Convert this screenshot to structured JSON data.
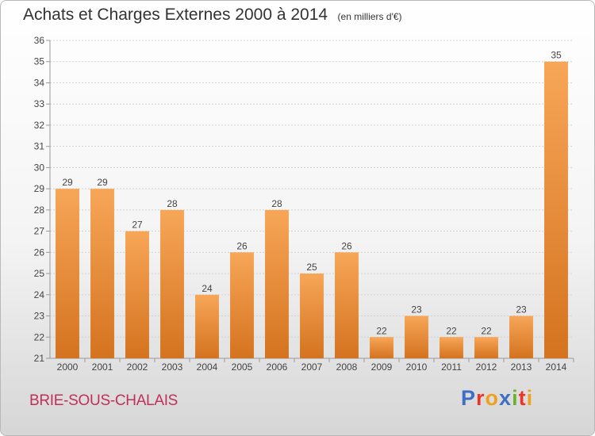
{
  "header": {
    "title": "Achats et Charges Externes 2000 à 2014",
    "unit": "(en milliers d'€)"
  },
  "footer": {
    "commune": "BRIE-SOUS-CHALAIS",
    "brand": "Proxiti"
  },
  "colors": {
    "bar_light": "#f7a658",
    "bar_dark": "#d4731f",
    "commune_text": "#c0305a",
    "brand_letters": [
      "#3d6fc4",
      "#e8362a",
      "#f0a020",
      "#3d6fc4",
      "#6ab42c",
      "#e8362a",
      "#f0a020"
    ]
  },
  "chart_data": {
    "type": "bar",
    "categories": [
      "2000",
      "2001",
      "2002",
      "2003",
      "2004",
      "2005",
      "2006",
      "2007",
      "2008",
      "2009",
      "2010",
      "2011",
      "2012",
      "2013",
      "2014"
    ],
    "values": [
      29,
      29,
      27,
      28,
      24,
      26,
      28,
      25,
      26,
      22,
      23,
      22,
      22,
      23,
      35
    ],
    "title": "Achats et Charges Externes 2000 à 2014",
    "ylim": [
      21,
      36
    ],
    "yticks": [
      21,
      22,
      23,
      24,
      25,
      26,
      27,
      28,
      29,
      30,
      31,
      32,
      33,
      34,
      35,
      36
    ],
    "grid": true,
    "data_labels": true
  }
}
